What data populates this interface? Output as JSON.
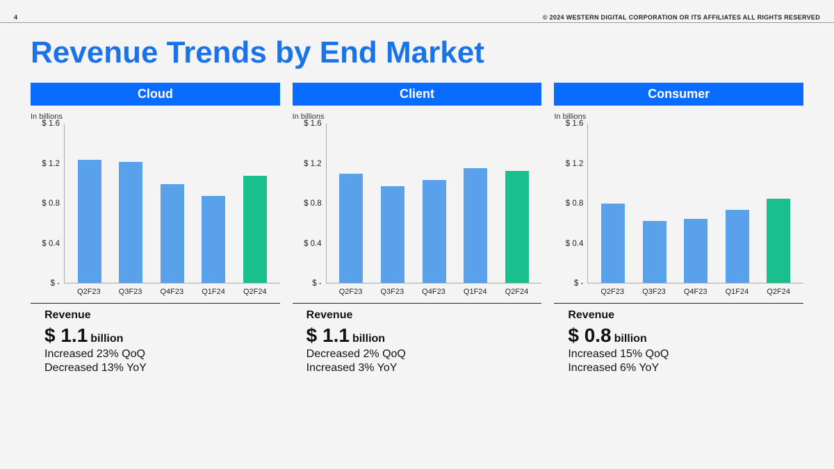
{
  "page_number": "4",
  "copyright": "© 2024 WESTERN DIGITAL CORPORATION OR ITS AFFILIATES  ALL RIGHTS RESERVED",
  "title": "Revenue Trends by End Market",
  "title_color": "#1a73e8",
  "header_bg": "#0a6cff",
  "header_fg": "#ffffff",
  "bar_color_regular": "#5aa1ec",
  "bar_color_highlight": "#19c08e",
  "background_color": "#f4f4f4",
  "axis_color": "#aaaaaa",
  "text_color": "#111111",
  "y_axis": {
    "unit_label": "In billions",
    "max": 1.6,
    "ticks": [
      {
        "v": 1.6,
        "label": "$ 1.6"
      },
      {
        "v": 1.2,
        "label": "$ 1.2"
      },
      {
        "v": 0.8,
        "label": "$ 0.8"
      },
      {
        "v": 0.4,
        "label": "$ 0.4"
      },
      {
        "v": 0.0,
        "label": "$ -"
      }
    ]
  },
  "categories": [
    "Q2F23",
    "Q3F23",
    "Q4F23",
    "Q1F24",
    "Q2F24"
  ],
  "panels": [
    {
      "name": "Cloud",
      "values": [
        1.23,
        1.21,
        0.99,
        0.87,
        1.07
      ],
      "highlight_index": 4,
      "revenue_label": "Revenue",
      "revenue_value": "$ 1.1",
      "revenue_unit": "billion",
      "delta_qoq": "Increased 23% QoQ",
      "delta_yoy": "Decreased 13% YoY"
    },
    {
      "name": "Client",
      "values": [
        1.09,
        0.97,
        1.03,
        1.15,
        1.12
      ],
      "highlight_index": 4,
      "revenue_label": "Revenue",
      "revenue_value": "$ 1.1",
      "revenue_unit": "billion",
      "delta_qoq": "Decreased 2% QoQ",
      "delta_yoy": "Increased 3% YoY"
    },
    {
      "name": "Consumer",
      "values": [
        0.79,
        0.62,
        0.64,
        0.73,
        0.84
      ],
      "highlight_index": 4,
      "revenue_label": "Revenue",
      "revenue_value": "$ 0.8",
      "revenue_unit": "billion",
      "delta_qoq": "Increased 15% QoQ",
      "delta_yoy": "Increased 6% YoY"
    }
  ]
}
